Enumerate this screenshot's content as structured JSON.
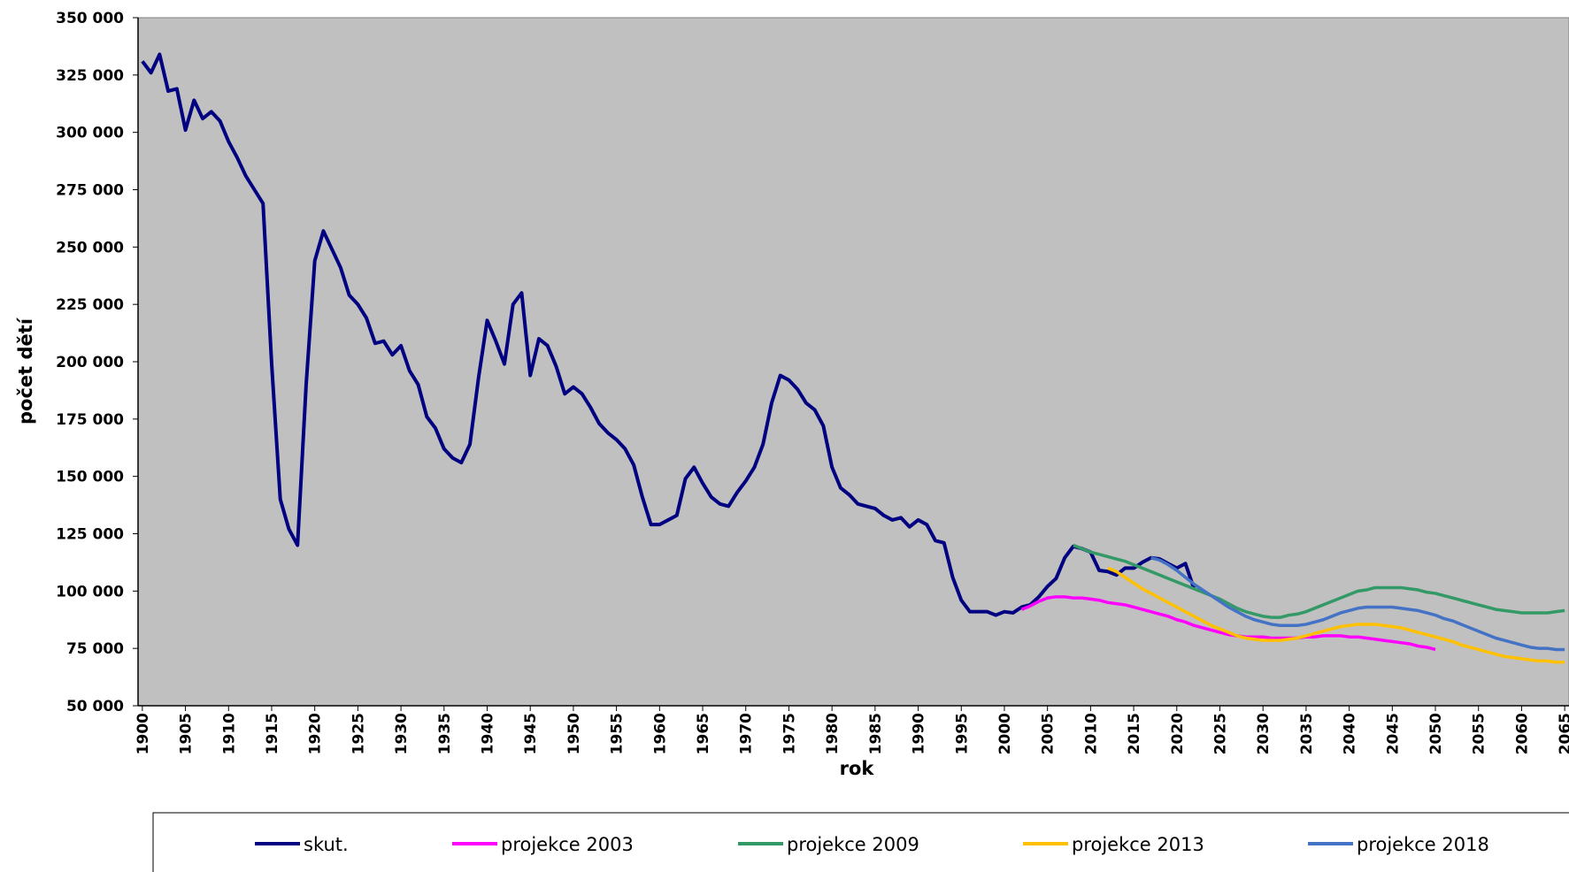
{
  "chart_data": {
    "type": "line",
    "x_label": "rok",
    "y_label": "počet dětí",
    "xlim": [
      1899.5,
      2065.5
    ],
    "xticks": [
      1900,
      1905,
      1910,
      1915,
      1920,
      1925,
      1930,
      1935,
      1940,
      1945,
      1950,
      1955,
      1960,
      1965,
      1970,
      1975,
      1980,
      1985,
      1990,
      1995,
      2000,
      2005,
      2010,
      2015,
      2020,
      2025,
      2030,
      2035,
      2040,
      2045,
      2050,
      2055,
      2060,
      2065
    ],
    "ylim": [
      50000,
      350000
    ],
    "yticks": [
      {
        "value": 50000,
        "label": "50 000"
      },
      {
        "value": 75000,
        "label": "75 000"
      },
      {
        "value": 100000,
        "label": "100 000"
      },
      {
        "value": 125000,
        "label": "125 000"
      },
      {
        "value": 150000,
        "label": "150 000"
      },
      {
        "value": 175000,
        "label": "175 000"
      },
      {
        "value": 200000,
        "label": "200 000"
      },
      {
        "value": 225000,
        "label": "225 000"
      },
      {
        "value": 250000,
        "label": "250 000"
      },
      {
        "value": 275000,
        "label": "275 000"
      },
      {
        "value": 300000,
        "label": "300 000"
      },
      {
        "value": 325000,
        "label": "325 000"
      },
      {
        "value": 350000,
        "label": "350 000"
      }
    ],
    "plot_background": "#c0c0c0",
    "series": [
      {
        "name": "skut.",
        "color": "#000080",
        "x": [
          1900,
          1901,
          1902,
          1903,
          1904,
          1905,
          1906,
          1907,
          1908,
          1909,
          1910,
          1911,
          1912,
          1913,
          1914,
          1915,
          1916,
          1917,
          1918,
          1919,
          1920,
          1921,
          1922,
          1923,
          1924,
          1925,
          1926,
          1927,
          1928,
          1929,
          1930,
          1931,
          1932,
          1933,
          1934,
          1935,
          1936,
          1937,
          1938,
          1939,
          1940,
          1941,
          1942,
          1943,
          1944,
          1945,
          1946,
          1947,
          1948,
          1949,
          1950,
          1951,
          1952,
          1953,
          1954,
          1955,
          1956,
          1957,
          1958,
          1959,
          1960,
          1961,
          1962,
          1963,
          1964,
          1965,
          1966,
          1967,
          1968,
          1969,
          1970,
          1971,
          1972,
          1973,
          1974,
          1975,
          1976,
          1977,
          1978,
          1979,
          1980,
          1981,
          1982,
          1983,
          1984,
          1985,
          1986,
          1987,
          1988,
          1989,
          1990,
          1991,
          1992,
          1993,
          1994,
          1995,
          1996,
          1997,
          1998,
          1999,
          2000,
          2001,
          2002,
          2003,
          2004,
          2005,
          2006,
          2007,
          2008,
          2009,
          2010,
          2011,
          2012,
          2013,
          2014,
          2015,
          2016,
          2017,
          2018,
          2019,
          2020,
          2021,
          2022
        ],
        "values": [
          331000,
          326000,
          334000,
          318000,
          319000,
          301000,
          314000,
          306000,
          309000,
          305000,
          296000,
          289000,
          281000,
          275000,
          269000,
          199000,
          140000,
          127000,
          120000,
          190000,
          244000,
          257000,
          249000,
          241000,
          229000,
          225000,
          219000,
          208000,
          209000,
          203000,
          207000,
          196000,
          190000,
          176000,
          171000,
          162000,
          158000,
          156000,
          164000,
          193000,
          218000,
          209000,
          199000,
          225000,
          230000,
          194000,
          210000,
          207000,
          198000,
          186000,
          189000,
          186000,
          180000,
          173000,
          169000,
          166000,
          162000,
          155000,
          141000,
          129000,
          129000,
          131000,
          133000,
          149000,
          154000,
          147000,
          141000,
          138000,
          137000,
          143000,
          148000,
          154000,
          164000,
          182000,
          194000,
          192000,
          188000,
          182000,
          179000,
          172000,
          154000,
          145000,
          142000,
          138000,
          137000,
          136000,
          133000,
          131000,
          132000,
          128000,
          131000,
          129000,
          122000,
          121000,
          106000,
          96000,
          91000,
          91000,
          91000,
          89500,
          91000,
          90500,
          93000,
          94000,
          97500,
          102000,
          105500,
          114500,
          119500,
          118500,
          117000,
          109000,
          108500,
          107000,
          110000,
          110000,
          112500,
          114500,
          114000,
          112000,
          110000,
          112000,
          101000
        ]
      },
      {
        "name": "projekce 2003",
        "color": "#ff00ff",
        "x": [
          2002,
          2003,
          2004,
          2005,
          2006,
          2007,
          2008,
          2009,
          2010,
          2011,
          2012,
          2013,
          2014,
          2015,
          2016,
          2017,
          2018,
          2019,
          2020,
          2021,
          2022,
          2023,
          2024,
          2025,
          2026,
          2027,
          2028,
          2029,
          2030,
          2031,
          2032,
          2033,
          2034,
          2035,
          2036,
          2037,
          2038,
          2039,
          2040,
          2041,
          2042,
          2043,
          2044,
          2045,
          2046,
          2047,
          2048,
          2049,
          2050
        ],
        "values": [
          92000,
          93500,
          95500,
          97000,
          97500,
          97500,
          97000,
          97000,
          96500,
          96000,
          95000,
          94500,
          94000,
          93000,
          92000,
          91000,
          90000,
          89000,
          87500,
          86500,
          85000,
          84000,
          83000,
          82000,
          81000,
          80500,
          80000,
          80000,
          80000,
          79500,
          79500,
          79500,
          79500,
          80000,
          80000,
          80500,
          80500,
          80500,
          80000,
          80000,
          79500,
          79000,
          78500,
          78000,
          77500,
          77000,
          76000,
          75500,
          74500
        ]
      },
      {
        "name": "projekce 2009",
        "color": "#339966",
        "x": [
          2008,
          2009,
          2010,
          2011,
          2012,
          2013,
          2014,
          2015,
          2016,
          2017,
          2018,
          2019,
          2020,
          2021,
          2022,
          2023,
          2024,
          2025,
          2026,
          2027,
          2028,
          2029,
          2030,
          2031,
          2032,
          2033,
          2034,
          2035,
          2036,
          2037,
          2038,
          2039,
          2040,
          2041,
          2042,
          2043,
          2044,
          2045,
          2046,
          2047,
          2048,
          2049,
          2050,
          2051,
          2052,
          2053,
          2054,
          2055,
          2056,
          2057,
          2058,
          2059,
          2060,
          2061,
          2062,
          2063,
          2064,
          2065
        ],
        "values": [
          120000,
          118500,
          117000,
          116000,
          115000,
          114000,
          113000,
          111500,
          110000,
          108500,
          107000,
          105500,
          104000,
          102500,
          101000,
          99500,
          98000,
          96500,
          94500,
          92500,
          91000,
          90000,
          89000,
          88500,
          88500,
          89500,
          90000,
          91000,
          92500,
          94000,
          95500,
          97000,
          98500,
          100000,
          100500,
          101500,
          101500,
          101500,
          101500,
          101000,
          100500,
          99500,
          99000,
          98000,
          97000,
          96000,
          95000,
          94000,
          93000,
          92000,
          91500,
          91000,
          90500,
          90500,
          90500,
          90500,
          91000,
          91500
        ]
      },
      {
        "name": "projekce 2013",
        "color": "#ffc000",
        "x": [
          2012,
          2013,
          2014,
          2015,
          2016,
          2017,
          2018,
          2019,
          2020,
          2021,
          2022,
          2023,
          2024,
          2025,
          2026,
          2027,
          2028,
          2029,
          2030,
          2031,
          2032,
          2033,
          2034,
          2035,
          2036,
          2037,
          2038,
          2039,
          2040,
          2041,
          2042,
          2043,
          2044,
          2045,
          2046,
          2047,
          2048,
          2049,
          2050,
          2051,
          2052,
          2053,
          2054,
          2055,
          2056,
          2057,
          2058,
          2059,
          2060,
          2061,
          2062,
          2063,
          2064,
          2065
        ],
        "values": [
          110000,
          108500,
          106000,
          103500,
          101000,
          99000,
          97000,
          95000,
          93000,
          91000,
          89000,
          87000,
          85000,
          83500,
          82000,
          80500,
          79500,
          79000,
          78500,
          78500,
          78500,
          79000,
          79500,
          80500,
          81500,
          82500,
          83500,
          84500,
          85000,
          85500,
          85500,
          85500,
          85000,
          84500,
          84000,
          83000,
          82000,
          81000,
          80000,
          79000,
          78000,
          76500,
          75500,
          74500,
          73500,
          72500,
          71500,
          71000,
          70500,
          70000,
          69500,
          69500,
          69000,
          69000
        ]
      },
      {
        "name": "projekce 2018",
        "color": "#4472c4",
        "x": [
          2017,
          2018,
          2019,
          2020,
          2021,
          2022,
          2023,
          2024,
          2025,
          2026,
          2027,
          2028,
          2029,
          2030,
          2031,
          2032,
          2033,
          2034,
          2035,
          2036,
          2037,
          2038,
          2039,
          2040,
          2041,
          2042,
          2043,
          2044,
          2045,
          2046,
          2047,
          2048,
          2049,
          2050,
          2051,
          2052,
          2053,
          2054,
          2055,
          2056,
          2057,
          2058,
          2059,
          2060,
          2061,
          2062,
          2063,
          2064,
          2065
        ],
        "values": [
          114500,
          113500,
          111500,
          109000,
          106000,
          103000,
          100500,
          98000,
          95500,
          93000,
          91000,
          89000,
          87500,
          86500,
          85500,
          85000,
          85000,
          85000,
          85500,
          86500,
          87500,
          89000,
          90500,
          91500,
          92500,
          93000,
          93000,
          93000,
          93000,
          92500,
          92000,
          91500,
          90500,
          89500,
          88000,
          87000,
          85500,
          84000,
          82500,
          81000,
          79500,
          78500,
          77500,
          76500,
          75500,
          75000,
          75000,
          74500,
          74500
        ]
      }
    ]
  }
}
